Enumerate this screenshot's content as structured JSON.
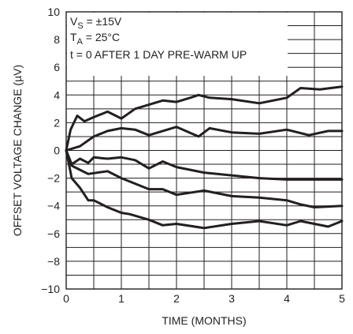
{
  "chart_data": {
    "type": "line",
    "title": "",
    "xlabel": "TIME (MONTHS)",
    "ylabel": "OFFSET VOLTAGE CHANGE (µV)",
    "xlim": [
      0,
      5
    ],
    "ylim": [
      -10,
      10
    ],
    "x_ticks": [
      "0",
      "1",
      "2",
      "3",
      "4",
      "5"
    ],
    "y_ticks": [
      "10",
      "8",
      "6",
      "4",
      "2",
      "0",
      "−2",
      "−4",
      "−6",
      "−8",
      "−10"
    ],
    "grid": true,
    "annotations": {
      "vs": {
        "main": "V",
        "sub": "S",
        "rest": " = ±15V"
      },
      "ta": {
        "main": "T",
        "sub": "A",
        "rest": " = 25°C"
      },
      "t0": "t = 0 AFTER 1 DAY PRE-WARM UP"
    },
    "series": [
      {
        "values": [
          [
            0,
            0
          ],
          [
            0.08,
            1.5
          ],
          [
            0.2,
            2.5
          ],
          [
            0.33,
            2.1
          ],
          [
            0.5,
            2.4
          ],
          [
            0.75,
            2.8
          ],
          [
            1,
            2.3
          ],
          [
            1.25,
            3.0
          ],
          [
            1.5,
            3.3
          ],
          [
            1.75,
            3.6
          ],
          [
            2,
            3.5
          ],
          [
            2.25,
            3.8
          ],
          [
            2.4,
            4.0
          ],
          [
            2.6,
            3.8
          ],
          [
            3,
            3.7
          ],
          [
            3.5,
            3.4
          ],
          [
            4,
            3.8
          ],
          [
            4.25,
            4.5
          ],
          [
            4.6,
            4.4
          ],
          [
            5,
            4.6
          ]
        ]
      },
      {
        "values": [
          [
            0,
            0
          ],
          [
            0.25,
            0.3
          ],
          [
            0.5,
            1.0
          ],
          [
            0.75,
            1.4
          ],
          [
            1,
            1.6
          ],
          [
            1.25,
            1.5
          ],
          [
            1.5,
            1.1
          ],
          [
            1.75,
            1.4
          ],
          [
            2,
            1.7
          ],
          [
            2.4,
            1.0
          ],
          [
            2.6,
            1.6
          ],
          [
            3,
            1.3
          ],
          [
            3.5,
            1.2
          ],
          [
            4,
            1.5
          ],
          [
            4.4,
            1.1
          ],
          [
            4.75,
            1.4
          ],
          [
            5,
            1.4
          ]
        ]
      },
      {
        "values": [
          [
            0,
            0
          ],
          [
            0.1,
            -1.0
          ],
          [
            0.25,
            -0.6
          ],
          [
            0.4,
            -0.9
          ],
          [
            0.5,
            -0.5
          ],
          [
            0.75,
            -0.6
          ],
          [
            1,
            -0.5
          ],
          [
            1.25,
            -0.7
          ],
          [
            1.5,
            -1.3
          ],
          [
            1.75,
            -0.8
          ],
          [
            2,
            -1.2
          ],
          [
            2.5,
            -1.6
          ],
          [
            3,
            -1.8
          ],
          [
            3.5,
            -2.0
          ],
          [
            4,
            -2.1
          ],
          [
            4.5,
            -2.1
          ],
          [
            5,
            -2.1
          ]
        ]
      },
      {
        "values": [
          [
            0,
            0
          ],
          [
            0.1,
            -1.1
          ],
          [
            0.25,
            -1.4
          ],
          [
            0.4,
            -1.7
          ],
          [
            0.75,
            -1.5
          ],
          [
            1,
            -2.0
          ],
          [
            1.5,
            -2.8
          ],
          [
            1.75,
            -2.8
          ],
          [
            2,
            -3.2
          ],
          [
            2.5,
            -2.9
          ],
          [
            3,
            -3.3
          ],
          [
            3.5,
            -3.4
          ],
          [
            4,
            -3.6
          ],
          [
            4.25,
            -3.9
          ],
          [
            4.5,
            -4.1
          ],
          [
            5,
            -4.0
          ]
        ]
      },
      {
        "values": [
          [
            0,
            0
          ],
          [
            0.1,
            -2.0
          ],
          [
            0.25,
            -2.7
          ],
          [
            0.4,
            -3.6
          ],
          [
            0.5,
            -3.6
          ],
          [
            0.75,
            -4.1
          ],
          [
            1,
            -4.5
          ],
          [
            1.15,
            -4.6
          ],
          [
            1.5,
            -5.0
          ],
          [
            1.75,
            -5.4
          ],
          [
            2,
            -5.3
          ],
          [
            2.5,
            -5.6
          ],
          [
            3,
            -5.3
          ],
          [
            3.5,
            -5.1
          ],
          [
            4,
            -5.4
          ],
          [
            4.25,
            -5.1
          ],
          [
            4.75,
            -5.5
          ],
          [
            5,
            -5.1
          ]
        ]
      }
    ]
  }
}
